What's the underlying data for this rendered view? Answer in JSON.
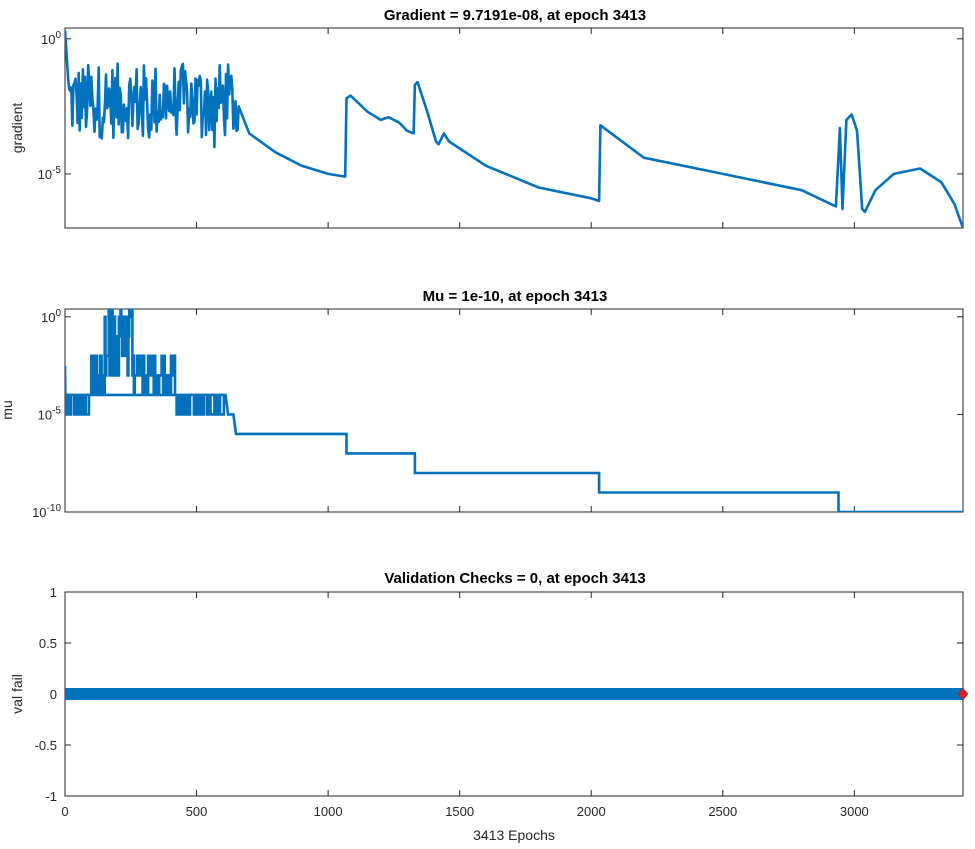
{
  "figure": {
    "xlabel": "3413 Epochs",
    "xticks": [
      0,
      500,
      1000,
      1500,
      2000,
      2500,
      3000
    ],
    "xlim": [
      0,
      3413
    ],
    "line_color": "#0072BD",
    "marker_color": "#D62728"
  },
  "chart_data": [
    {
      "id": "gradient",
      "type": "line",
      "title": "Gradient = 9.7191e-08, at epoch 3413",
      "ylabel": "gradient",
      "yscale": "log",
      "ylim_exp": [
        -7.0,
        0.4
      ],
      "yticks": [
        {
          "exp": 0,
          "base": "10",
          "sup": "0"
        },
        {
          "exp": -5,
          "base": "10",
          "sup": "-5"
        }
      ],
      "noisy_range": {
        "x": [
          0,
          660
        ],
        "log_y_center": -2.3,
        "log_y_spread": 1.4
      },
      "points": [
        [
          0,
          0.3
        ],
        [
          12,
          -1.5
        ],
        [
          660,
          -2.5
        ],
        [
          700,
          -3.5
        ],
        [
          800,
          -4.2
        ],
        [
          900,
          -4.7
        ],
        [
          1000,
          -5.0
        ],
        [
          1065,
          -5.1
        ],
        [
          1070,
          -2.2
        ],
        [
          1085,
          -2.1
        ],
        [
          1150,
          -2.7
        ],
        [
          1200,
          -3.0
        ],
        [
          1230,
          -2.9
        ],
        [
          1270,
          -3.1
        ],
        [
          1300,
          -3.4
        ],
        [
          1325,
          -3.5
        ],
        [
          1330,
          -1.7
        ],
        [
          1340,
          -1.6
        ],
        [
          1380,
          -2.8
        ],
        [
          1410,
          -3.8
        ],
        [
          1420,
          -3.9
        ],
        [
          1440,
          -3.5
        ],
        [
          1460,
          -3.8
        ],
        [
          1600,
          -4.7
        ],
        [
          1800,
          -5.5
        ],
        [
          2000,
          -5.9
        ],
        [
          2030,
          -6.0
        ],
        [
          2035,
          -3.2
        ],
        [
          2200,
          -4.4
        ],
        [
          2500,
          -5.0
        ],
        [
          2800,
          -5.6
        ],
        [
          2930,
          -6.2
        ],
        [
          2945,
          -3.3
        ],
        [
          2955,
          -6.3
        ],
        [
          2970,
          -3.0
        ],
        [
          2990,
          -2.8
        ],
        [
          3010,
          -3.4
        ],
        [
          3030,
          -6.3
        ],
        [
          3040,
          -6.4
        ],
        [
          3080,
          -5.6
        ],
        [
          3150,
          -5.0
        ],
        [
          3250,
          -4.8
        ],
        [
          3330,
          -5.3
        ],
        [
          3380,
          -6.1
        ],
        [
          3413,
          -7.0
        ]
      ]
    },
    {
      "id": "mu",
      "type": "line",
      "title": "Mu = 1e-10, at epoch 3413",
      "ylabel": "mu",
      "yscale": "log",
      "ylim_exp": [
        -10.0,
        0.4
      ],
      "yticks": [
        {
          "exp": 0,
          "base": "10",
          "sup": "0"
        },
        {
          "exp": -5,
          "base": "10",
          "sup": "-5"
        },
        {
          "exp": -10,
          "base": "10",
          "sup": "-10"
        }
      ],
      "noisy_range": {
        "x": [
          0,
          610
        ],
        "log_y_levels": [
          -5,
          -4,
          -3,
          -2,
          -1,
          0
        ]
      },
      "points": [
        [
          0,
          -4.0
        ],
        [
          610,
          -4.0
        ],
        [
          620,
          -5.0
        ],
        [
          640,
          -5.0
        ],
        [
          650,
          -6.0
        ],
        [
          1070,
          -6.0
        ],
        [
          1070,
          -7.0
        ],
        [
          1330,
          -7.0
        ],
        [
          1330,
          -8.0
        ],
        [
          2030,
          -8.0
        ],
        [
          2030,
          -9.0
        ],
        [
          2940,
          -9.0
        ],
        [
          2940,
          -10.0
        ],
        [
          3413,
          -10.0
        ]
      ]
    },
    {
      "id": "valfail",
      "type": "scatter",
      "title": "Validation Checks = 0, at epoch 3413",
      "ylabel": "val fail",
      "yscale": "linear",
      "ylim": [
        -1,
        1
      ],
      "yticks": [
        1,
        0.5,
        0,
        -0.5,
        -1
      ],
      "ytick_labels": [
        "1",
        "0.5",
        "0",
        "-0.5",
        "-1"
      ],
      "x_range": [
        0,
        3413
      ],
      "value": 0,
      "final_point": [
        3413,
        0
      ]
    }
  ]
}
